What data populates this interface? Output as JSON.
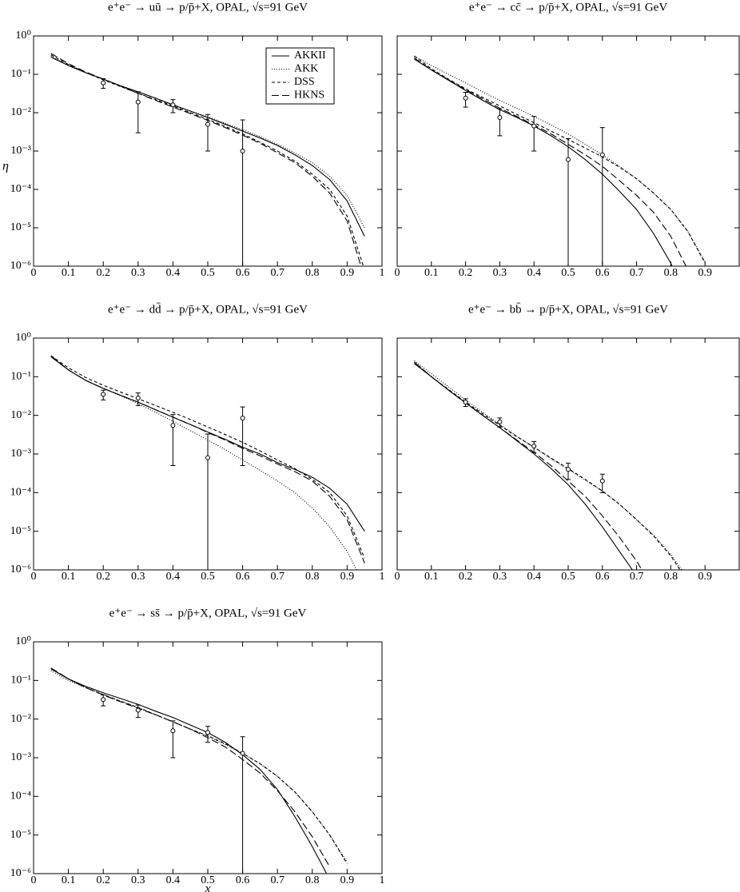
{
  "chart_data": [
    {
      "type": "line",
      "title": "e⁺e⁻ → uū → p/p̄+X, OPAL, √s=91 GeV",
      "ylabel": "η",
      "log_y": true,
      "legend": "upper center",
      "xlim": [
        0,
        1
      ],
      "xticks": [
        0,
        0.1,
        0.2,
        0.3,
        0.4,
        0.5,
        0.6,
        0.7,
        0.8,
        0.9,
        1
      ],
      "ylim": [
        1e-06,
        1
      ],
      "yticks": [
        {
          "value": 1e-06,
          "label": "10⁻⁶"
        },
        {
          "value": 1e-05,
          "label": "10⁻⁵"
        },
        {
          "value": 0.0001,
          "label": "10⁻⁴"
        },
        {
          "value": 0.001,
          "label": "10⁻³"
        },
        {
          "value": 0.01,
          "label": "10⁻²"
        },
        {
          "value": 0.1,
          "label": "10⁻¹"
        },
        {
          "value": 1,
          "label": "10⁰"
        }
      ],
      "x": [
        0.05,
        0.1,
        0.15,
        0.2,
        0.25,
        0.3,
        0.35,
        0.4,
        0.45,
        0.5,
        0.55,
        0.6,
        0.65,
        0.7,
        0.75,
        0.8,
        0.85,
        0.9,
        0.95
      ],
      "series": [
        {
          "name": "AKKII",
          "color": "#000000",
          "dash": "solid",
          "values": [
            0.28,
            0.17,
            0.11,
            0.075,
            0.05,
            0.035,
            0.024,
            0.016,
            0.011,
            0.0075,
            0.005,
            0.0033,
            0.0022,
            0.0014,
            0.0008,
            0.00042,
            0.00018,
            5e-05,
            6e-06
          ]
        },
        {
          "name": "AKK",
          "color": "#000000",
          "dash": "dotted",
          "values": [
            0.3,
            0.17,
            0.11,
            0.075,
            0.05,
            0.035,
            0.024,
            0.016,
            0.011,
            0.0078,
            0.0053,
            0.0036,
            0.0024,
            0.0015,
            0.0009,
            0.0005,
            0.00022,
            7e-05,
            1e-05
          ]
        },
        {
          "name": "DSS",
          "color": "#000000",
          "dash": "dashed",
          "values": [
            0.32,
            0.18,
            0.11,
            0.072,
            0.048,
            0.032,
            0.022,
            0.015,
            0.01,
            0.0067,
            0.0044,
            0.0028,
            0.0017,
            0.001,
            0.00055,
            0.00025,
            0.0001,
            2e-05,
            8e-07
          ]
        },
        {
          "name": "HKNS",
          "color": "#000000",
          "dash": "longdash",
          "values": [
            0.35,
            0.19,
            0.115,
            0.075,
            0.049,
            0.032,
            0.021,
            0.014,
            0.0095,
            0.0063,
            0.0041,
            0.0026,
            0.0016,
            0.0009,
            0.0005,
            0.00022,
            8e-05,
            1.5e-05,
            5e-07
          ]
        }
      ],
      "points": {
        "x": [
          0.2,
          0.3,
          0.4,
          0.5,
          0.6
        ],
        "values": [
          0.06,
          0.019,
          0.016,
          0.005,
          0.001
        ],
        "errors": [
          0.017,
          0.016,
          0.006,
          0.004,
          0.0055
        ]
      }
    },
    {
      "type": "line",
      "title": "e⁺e⁻ → cc̄ → p/p̄+X, OPAL, √s=91 GeV",
      "log_y": true,
      "ytick_labels": false,
      "xlim": [
        0,
        1
      ],
      "xticks": [
        0,
        0.1,
        0.2,
        0.3,
        0.4,
        0.5,
        0.6,
        0.7,
        0.8,
        0.9
      ],
      "ylim": [
        1e-06,
        1
      ],
      "yticks": [
        1e-06,
        1e-05,
        0.0001,
        0.001,
        0.01,
        0.1,
        1
      ],
      "x": [
        0.05,
        0.1,
        0.15,
        0.2,
        0.25,
        0.3,
        0.35,
        0.4,
        0.45,
        0.5,
        0.55,
        0.6,
        0.65,
        0.7,
        0.75,
        0.8,
        0.85,
        0.9,
        0.95
      ],
      "series": [
        {
          "color": "#000000",
          "dash": "solid",
          "values": [
            0.25,
            0.13,
            0.07,
            0.038,
            0.021,
            0.012,
            0.0075,
            0.0045,
            0.0025,
            0.0013,
            0.0006,
            0.00025,
            9e-05,
            3e-05,
            7e-06,
            1.2e-06,
            1e-07,
            null,
            null
          ]
        },
        {
          "color": "#000000",
          "dash": "dotted",
          "values": [
            0.3,
            0.17,
            0.1,
            0.06,
            0.035,
            0.021,
            0.013,
            0.008,
            0.0048,
            0.0028,
            0.0015,
            0.0008,
            0.0004,
            0.00019,
            8e-05,
            3e-05,
            8e-06,
            1.3e-06,
            null
          ]
        },
        {
          "color": "#000000",
          "dash": "dashed",
          "values": [
            0.3,
            0.14,
            0.075,
            0.042,
            0.025,
            0.015,
            0.009,
            0.0055,
            0.0033,
            0.002,
            0.0012,
            0.0007,
            0.00038,
            0.00019,
            8e-05,
            3e-05,
            8e-06,
            1.2e-06,
            null
          ]
        },
        {
          "color": "#000000",
          "dash": "longdash",
          "values": [
            0.27,
            0.13,
            0.072,
            0.04,
            0.023,
            0.013,
            0.008,
            0.0048,
            0.0028,
            0.0015,
            0.0008,
            0.0004,
            0.00017,
            7e-05,
            2.5e-05,
            6e-06,
            8e-07,
            null,
            null
          ]
        }
      ],
      "points": {
        "x": [
          0.2,
          0.3,
          0.4,
          0.5,
          0.6
        ],
        "values": [
          0.024,
          0.0075,
          0.0045,
          0.0006,
          0.0008
        ],
        "errors": [
          0.01,
          0.005,
          0.0035,
          0.0015,
          0.0033
        ]
      }
    },
    {
      "type": "line",
      "title": "e⁺e⁻ → dd̄ → p/p̄+X, OPAL, √s=91 GeV",
      "log_y": true,
      "xlim": [
        0,
        1
      ],
      "xticks": [
        0,
        0.1,
        0.2,
        0.3,
        0.4,
        0.5,
        0.6,
        0.7,
        0.8,
        0.9,
        1
      ],
      "ylim": [
        1e-06,
        1
      ],
      "yticks": [
        {
          "value": 1e-06,
          "label": "10⁻⁶"
        },
        {
          "value": 1e-05,
          "label": "10⁻⁵"
        },
        {
          "value": 0.0001,
          "label": "10⁻⁴"
        },
        {
          "value": 0.001,
          "label": "10⁻³"
        },
        {
          "value": 0.01,
          "label": "10⁻²"
        },
        {
          "value": 0.1,
          "label": "10⁻¹"
        },
        {
          "value": 1,
          "label": "10⁰"
        }
      ],
      "x": [
        0.05,
        0.1,
        0.15,
        0.2,
        0.25,
        0.3,
        0.35,
        0.4,
        0.45,
        0.5,
        0.55,
        0.6,
        0.65,
        0.7,
        0.75,
        0.8,
        0.85,
        0.9,
        0.95
      ],
      "series": [
        {
          "color": "#000000",
          "dash": "solid",
          "values": [
            0.33,
            0.15,
            0.08,
            0.05,
            0.033,
            0.022,
            0.014,
            0.009,
            0.0058,
            0.0037,
            0.0024,
            0.0015,
            0.001,
            0.0006,
            0.0004,
            0.00025,
            0.00013,
            5e-05,
            1e-05
          ]
        },
        {
          "color": "#000000",
          "dash": "dotted",
          "values": [
            0.33,
            0.15,
            0.08,
            0.05,
            0.032,
            0.02,
            0.012,
            0.007,
            0.004,
            0.0023,
            0.0013,
            0.0007,
            0.00038,
            0.0002,
            0.0001,
            4e-05,
            1.3e-05,
            3e-06,
            4e-07
          ]
        },
        {
          "color": "#000000",
          "dash": "dashed",
          "values": [
            0.35,
            0.17,
            0.095,
            0.06,
            0.04,
            0.027,
            0.018,
            0.012,
            0.0078,
            0.005,
            0.0032,
            0.002,
            0.0012,
            0.0007,
            0.00042,
            0.00022,
            0.0001,
            2.5e-05,
            2e-06
          ]
        },
        {
          "color": "#000000",
          "dash": "longdash",
          "values": [
            0.35,
            0.15,
            0.08,
            0.05,
            0.033,
            0.022,
            0.014,
            0.009,
            0.0058,
            0.0036,
            0.0023,
            0.0014,
            0.0009,
            0.00055,
            0.00035,
            0.0002,
            8e-05,
            2e-05,
            1.5e-06
          ]
        }
      ],
      "points": {
        "x": [
          0.2,
          0.3,
          0.4,
          0.5,
          0.6
        ],
        "values": [
          0.035,
          0.028,
          0.0055,
          0.0008,
          0.0085
        ],
        "errors": [
          0.01,
          0.01,
          0.005,
          0.0025,
          0.008
        ]
      }
    },
    {
      "type": "line",
      "title": "e⁺e⁻ → bb̄ → p/p̄+X, OPAL, √s=91 GeV",
      "log_y": true,
      "ytick_labels": false,
      "xlim": [
        0,
        1
      ],
      "xticks": [
        0,
        0.1,
        0.2,
        0.3,
        0.4,
        0.5,
        0.6,
        0.7,
        0.8,
        0.9
      ],
      "ylim": [
        1e-06,
        1
      ],
      "yticks": [
        1e-06,
        1e-05,
        0.0001,
        0.001,
        0.01,
        0.1,
        1
      ],
      "x": [
        0.05,
        0.1,
        0.15,
        0.2,
        0.25,
        0.3,
        0.35,
        0.4,
        0.45,
        0.5,
        0.55,
        0.6,
        0.65,
        0.7,
        0.75,
        0.8,
        0.85,
        0.9,
        0.95
      ],
      "series": [
        {
          "color": "#000000",
          "dash": "solid",
          "values": [
            0.22,
            0.1,
            0.045,
            0.021,
            0.01,
            0.0048,
            0.0022,
            0.001,
            0.00042,
            0.00016,
            5e-05,
            1.3e-05,
            3e-06,
            7e-07,
            null,
            null,
            null,
            null,
            null
          ]
        },
        {
          "color": "#000000",
          "dash": "dotted",
          "values": [
            0.26,
            0.12,
            0.055,
            0.025,
            0.012,
            0.0058,
            0.0029,
            0.0015,
            0.00075,
            0.0004,
            0.00021,
            0.00011,
            5e-05,
            2e-05,
            8e-06,
            2.5e-06,
            6e-07,
            null,
            null
          ]
        },
        {
          "color": "#000000",
          "dash": "dashed",
          "values": [
            0.24,
            0.1,
            0.047,
            0.022,
            0.011,
            0.0055,
            0.0028,
            0.0015,
            0.00078,
            0.00042,
            0.00022,
            0.00011,
            5e-05,
            2e-05,
            7.5e-06,
            2.3e-06,
            5e-07,
            null,
            null
          ]
        },
        {
          "color": "#000000",
          "dash": "longdash",
          "values": [
            0.24,
            0.1,
            0.045,
            0.021,
            0.01,
            0.0048,
            0.0023,
            0.0011,
            0.0005,
            0.0002,
            8e-05,
            2.5e-05,
            7e-06,
            1.7e-06,
            3e-07,
            null,
            null,
            null,
            null
          ]
        }
      ],
      "points": {
        "x": [
          0.2,
          0.3,
          0.4,
          0.5,
          0.6
        ],
        "values": [
          0.022,
          0.0068,
          0.0016,
          0.0004,
          0.0002
        ],
        "errors": [
          0.005,
          0.0018,
          0.0005,
          0.00018,
          0.0001
        ]
      }
    },
    {
      "type": "line",
      "title": "e⁺e⁻ → ss̄ → p/p̄+X, OPAL, √s=91 GeV",
      "xlabel": "x",
      "log_y": true,
      "xlim": [
        0,
        1
      ],
      "xticks": [
        0,
        0.1,
        0.2,
        0.3,
        0.4,
        0.5,
        0.6,
        0.7,
        0.8,
        0.9,
        1
      ],
      "ylim": [
        1e-06,
        1
      ],
      "yticks": [
        {
          "value": 1e-06,
          "label": "10⁻⁶"
        },
        {
          "value": 1e-05,
          "label": "10⁻⁵"
        },
        {
          "value": 0.0001,
          "label": "10⁻⁴"
        },
        {
          "value": 0.001,
          "label": "10⁻³"
        },
        {
          "value": 0.01,
          "label": "10⁻²"
        },
        {
          "value": 0.1,
          "label": "10⁻¹"
        },
        {
          "value": 1,
          "label": "10⁰"
        }
      ],
      "x": [
        0.05,
        0.1,
        0.15,
        0.2,
        0.25,
        0.3,
        0.35,
        0.4,
        0.45,
        0.5,
        0.55,
        0.6,
        0.65,
        0.7,
        0.75,
        0.8,
        0.85,
        0.9,
        0.95
      ],
      "series": [
        {
          "color": "#000000",
          "dash": "solid",
          "values": [
            0.2,
            0.11,
            0.07,
            0.048,
            0.034,
            0.024,
            0.016,
            0.011,
            0.007,
            0.0045,
            0.0025,
            0.0012,
            0.0005,
            0.00015,
            3e-05,
            5e-06,
            7e-07,
            null,
            null
          ]
        },
        {
          "color": "#000000",
          "dash": "dotted",
          "values": [
            0.18,
            0.1,
            0.065,
            0.043,
            0.029,
            0.02,
            0.013,
            0.0085,
            0.0055,
            0.0036,
            0.0022,
            0.0013,
            0.0007,
            0.00033,
            0.00013,
            4e-05,
            1e-05,
            2e-06,
            null
          ]
        },
        {
          "color": "#000000",
          "dash": "dashed",
          "values": [
            0.2,
            0.11,
            0.065,
            0.043,
            0.029,
            0.02,
            0.013,
            0.0085,
            0.0055,
            0.0037,
            0.0023,
            0.0013,
            0.0007,
            0.00033,
            0.00013,
            4e-05,
            1e-05,
            1.8e-06,
            null
          ]
        },
        {
          "color": "#000000",
          "dash": "longdash",
          "values": [
            0.21,
            0.11,
            0.065,
            0.042,
            0.028,
            0.019,
            0.013,
            0.0085,
            0.0055,
            0.0033,
            0.0019,
            0.0009,
            0.0004,
            0.00014,
            4e-05,
            9e-06,
            1.5e-06,
            null,
            null
          ]
        }
      ],
      "points": {
        "x": [
          0.2,
          0.3,
          0.4,
          0.5,
          0.6
        ],
        "values": [
          0.032,
          0.017,
          0.005,
          0.0045,
          0.0013
        ],
        "errors": [
          0.01,
          0.006,
          0.004,
          0.002,
          0.0022
        ]
      }
    }
  ]
}
